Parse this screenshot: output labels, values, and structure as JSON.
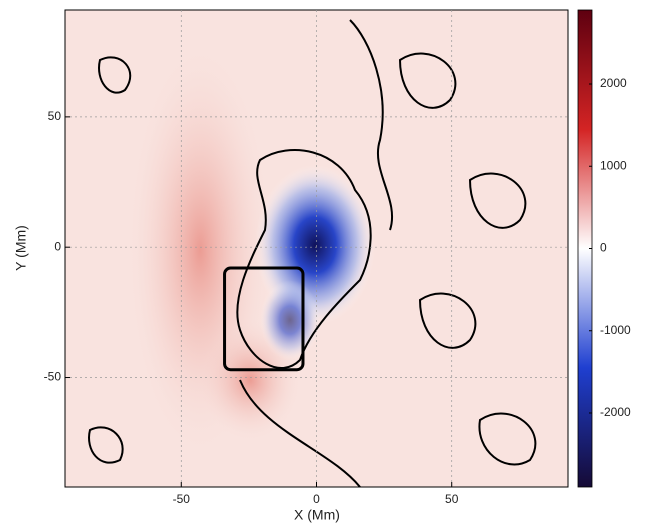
{
  "chart_data": {
    "type": "heatmap",
    "xlabel": "X (Mm)",
    "ylabel": "Y (Mm)",
    "xlim": [
      -93,
      93
    ],
    "ylim": [
      -92,
      91
    ],
    "xticks": [
      -50,
      0,
      50
    ],
    "yticks": [
      -50,
      0,
      50
    ],
    "grid": true,
    "colorbar": {
      "lim": [
        -2900,
        2900
      ],
      "ticks": [
        -2000,
        -1000,
        0,
        1000,
        2000
      ],
      "colors": [
        "#150a35",
        "#1f3fd0",
        "#ffffff",
        "#d42424",
        "#5e0010"
      ]
    },
    "annotation_box": {
      "x": [
        -34,
        -5
      ],
      "y": [
        -47,
        -8
      ],
      "color": "#000000"
    }
  }
}
